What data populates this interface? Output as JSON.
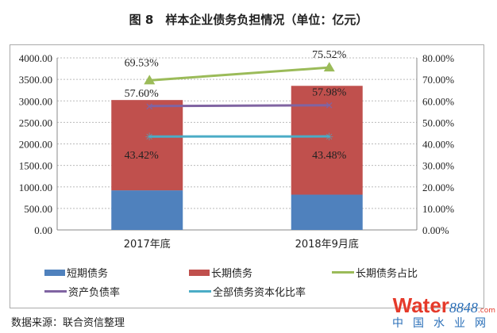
{
  "title": "图 8　样本企业债务负担情况（单位：亿元）",
  "source": "数据来源：联合资信整理",
  "watermark": {
    "brand": "Water",
    "num": "8848",
    "suffix": ".com",
    "cn": "中国水业网"
  },
  "chart_data": {
    "type": "bar",
    "categories": [
      "2017年底",
      "2018年9月底"
    ],
    "series": [
      {
        "name": "短期债务",
        "type": "bar",
        "axis": "left",
        "color": "#4f81bd",
        "values": [
          920,
          820
        ]
      },
      {
        "name": "长期债务",
        "type": "bar",
        "axis": "left",
        "color": "#c0504d",
        "values": [
          2100,
          2530
        ]
      },
      {
        "name": "长期债务占比",
        "type": "line",
        "axis": "right",
        "color": "#9bbb59",
        "marker": "triangle",
        "values": [
          69.53,
          75.52
        ],
        "labels": [
          "69.53%",
          "75.52%"
        ]
      },
      {
        "name": "资产负债率",
        "type": "line",
        "axis": "right",
        "color": "#8064a2",
        "marker": "x",
        "values": [
          57.6,
          57.98
        ],
        "labels": [
          "57.60%",
          "57.98%"
        ]
      },
      {
        "name": "全部债务资本化比率",
        "type": "line",
        "axis": "right",
        "color": "#4bacc6",
        "marker": "star",
        "values": [
          43.42,
          43.48
        ],
        "labels": [
          "43.42%",
          "43.48%"
        ]
      }
    ],
    "yleft": {
      "range": [
        0,
        4000
      ],
      "ticks": [
        "0.00",
        "500.00",
        "1000.00",
        "1500.00",
        "2000.00",
        "2500.00",
        "3000.00",
        "3500.00",
        "4000.00"
      ]
    },
    "yright": {
      "range": [
        0,
        80
      ],
      "ticks": [
        "0.00%",
        "10.00%",
        "20.00%",
        "30.00%",
        "40.00%",
        "50.00%",
        "60.00%",
        "70.00%",
        "80.00%"
      ]
    },
    "grid": true,
    "legend": "bottom"
  }
}
